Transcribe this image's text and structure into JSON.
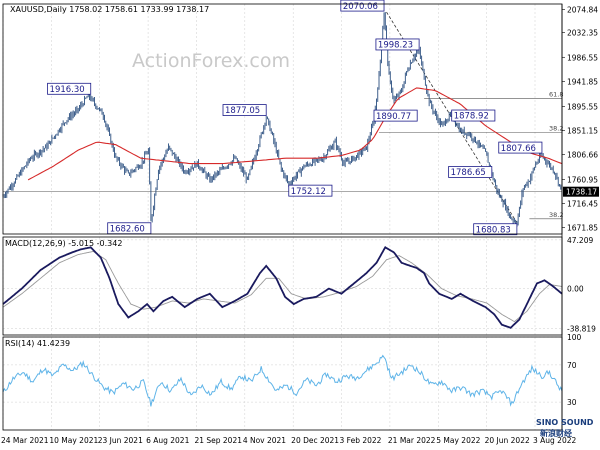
{
  "colors": {
    "bar": "#2a4e7f",
    "ma": "#d62a2a",
    "macd": "#1a1a5e",
    "signal": "#9a9a9a",
    "rsi": "#5fb4e8",
    "grid": "#cfcfcf",
    "ann_border": "#1c1c8a",
    "current_bg": "#000000"
  },
  "watermark": "ActionForex.com",
  "logo": {
    "line1": "SINO SOUND",
    "line2": "新浪财经"
  },
  "chart_data": [
    {
      "type": "ohlc",
      "title": "XAUUSD,Daily  1758.02 1758.61 1733.99 1738.17",
      "price_ticks": [
        2074.84,
        2032.35,
        1986.55,
        1941.85,
        1895.55,
        1851.15,
        1806.66,
        1760.95,
        1716.45,
        1671.85
      ],
      "y_range": [
        1660,
        2085
      ],
      "x_labels": [
        "24 Mar 2021",
        "10 May 2021",
        "23 Jun 2021",
        "6 Aug 2021",
        "21 Sep 2021",
        "4 Nov 2021",
        "20 Dec 2021",
        "3 Feb 2022",
        "21 Mar 2022",
        "5 May 2022",
        "20 Jun 2022",
        "3 Aug 2022"
      ],
      "key_points": [
        [
          0,
          1730
        ],
        [
          10,
          1760
        ],
        [
          22,
          1800
        ],
        [
          35,
          1822
        ],
        [
          50,
          1870
        ],
        [
          60,
          1890
        ],
        [
          68,
          1916
        ],
        [
          80,
          1880
        ],
        [
          90,
          1800
        ],
        [
          100,
          1770
        ],
        [
          110,
          1790
        ],
        [
          116,
          1815
        ],
        [
          118,
          1682
        ],
        [
          124,
          1780
        ],
        [
          132,
          1820
        ],
        [
          145,
          1775
        ],
        [
          155,
          1790
        ],
        [
          165,
          1760
        ],
        [
          175,
          1780
        ],
        [
          185,
          1800
        ],
        [
          195,
          1760
        ],
        [
          205,
          1835
        ],
        [
          210,
          1877
        ],
        [
          215,
          1840
        ],
        [
          222,
          1780
        ],
        [
          228,
          1752
        ],
        [
          240,
          1785
        ],
        [
          255,
          1800
        ],
        [
          265,
          1830
        ],
        [
          272,
          1790
        ],
        [
          280,
          1800
        ],
        [
          290,
          1820
        ],
        [
          296,
          1870
        ],
        [
          300,
          1952
        ],
        [
          304,
          2070
        ],
        [
          308,
          1950
        ],
        [
          312,
          1905
        ],
        [
          318,
          1925
        ],
        [
          322,
          1960
        ],
        [
          328,
          1990
        ],
        [
          332,
          1998
        ],
        [
          336,
          1950
        ],
        [
          340,
          1905
        ],
        [
          345,
          1880
        ],
        [
          350,
          1860
        ],
        [
          355,
          1875
        ],
        [
          358,
          1880
        ],
        [
          365,
          1850
        ],
        [
          372,
          1845
        ],
        [
          378,
          1830
        ],
        [
          385,
          1810
        ],
        [
          390,
          1770
        ],
        [
          395,
          1735
        ],
        [
          400,
          1715
        ],
        [
          405,
          1690
        ],
        [
          410,
          1681
        ],
        [
          415,
          1745
        ],
        [
          420,
          1760
        ],
        [
          425,
          1790
        ],
        [
          430,
          1805
        ],
        [
          435,
          1790
        ],
        [
          440,
          1775
        ],
        [
          446,
          1738
        ]
      ],
      "ma_points": [
        [
          20,
          1760
        ],
        [
          40,
          1785
        ],
        [
          60,
          1815
        ],
        [
          75,
          1830
        ],
        [
          90,
          1825
        ],
        [
          110,
          1800
        ],
        [
          130,
          1795
        ],
        [
          150,
          1790
        ],
        [
          175,
          1790
        ],
        [
          200,
          1795
        ],
        [
          225,
          1800
        ],
        [
          250,
          1800
        ],
        [
          270,
          1805
        ],
        [
          285,
          1815
        ],
        [
          295,
          1835
        ],
        [
          305,
          1875
        ],
        [
          315,
          1910
        ],
        [
          330,
          1930
        ],
        [
          345,
          1925
        ],
        [
          365,
          1900
        ],
        [
          385,
          1860
        ],
        [
          405,
          1830
        ],
        [
          420,
          1810
        ],
        [
          435,
          1800
        ],
        [
          446,
          1790
        ]
      ],
      "annotations": [
        {
          "bar": 70,
          "price": 1916.3,
          "text": "1916.30",
          "side": "left",
          "pos": "above"
        },
        {
          "bar": 118,
          "price": 1682.6,
          "text": "1682.60",
          "side": "left",
          "pos": "below"
        },
        {
          "bar": 210,
          "price": 1877.05,
          "text": "1877.05",
          "side": "left",
          "pos": "above"
        },
        {
          "bar": 228,
          "price": 1752.12,
          "text": "1752.12",
          "side": "right",
          "pos": "below"
        },
        {
          "bar": 304,
          "price": 2070.06,
          "text": "2070.06",
          "side": "left",
          "pos": "above"
        },
        {
          "bar": 332,
          "price": 1998.23,
          "text": "1998.23",
          "side": "left",
          "pos": "above"
        },
        {
          "bar": 296,
          "price": 1890.77,
          "text": "1890.77",
          "side": "right",
          "pos": "below"
        },
        {
          "bar": 390,
          "price": 1786.65,
          "text": "1786.65",
          "side": "left",
          "pos": "below"
        },
        {
          "bar": 358,
          "price": 1878.92,
          "text": "1878.92",
          "side": "right",
          "pos": "mid"
        },
        {
          "bar": 410,
          "price": 1680.83,
          "text": "1680.83",
          "side": "left",
          "pos": "below"
        },
        {
          "bar": 430,
          "price": 1807.66,
          "text": "1807.66",
          "side": "left",
          "pos": "above"
        }
      ],
      "fib_levels": [
        {
          "price": 1910,
          "label": "61.8",
          "from_bar": 336
        },
        {
          "price": 1848,
          "label": "38.2",
          "from_bar": 300
        },
        {
          "price": 1688,
          "label": "38.2",
          "from_bar": 420
        }
      ],
      "hlines": [
        {
          "price": 1738.17
        }
      ],
      "trendline": [
        [
          306,
          2070
        ],
        [
          410,
          1681
        ]
      ],
      "current_price": "1738.17"
    },
    {
      "type": "line",
      "title": "MACD(12,26,9) -5.015 -0.342",
      "y_ticks": [
        47.209,
        0.0,
        -38.819
      ],
      "y_range": [
        -45,
        50
      ],
      "macd_points": [
        [
          0,
          -15
        ],
        [
          15,
          0
        ],
        [
          30,
          18
        ],
        [
          45,
          30
        ],
        [
          55,
          35
        ],
        [
          62,
          38
        ],
        [
          70,
          40
        ],
        [
          78,
          30
        ],
        [
          85,
          10
        ],
        [
          92,
          -15
        ],
        [
          100,
          -28
        ],
        [
          108,
          -22
        ],
        [
          115,
          -15
        ],
        [
          120,
          -22
        ],
        [
          128,
          -12
        ],
        [
          135,
          -8
        ],
        [
          145,
          -18
        ],
        [
          155,
          -10
        ],
        [
          165,
          -5
        ],
        [
          175,
          -18
        ],
        [
          185,
          -12
        ],
        [
          195,
          -5
        ],
        [
          205,
          15
        ],
        [
          210,
          22
        ],
        [
          218,
          10
        ],
        [
          225,
          -8
        ],
        [
          232,
          -15
        ],
        [
          240,
          -10
        ],
        [
          250,
          -8
        ],
        [
          260,
          0
        ],
        [
          270,
          -5
        ],
        [
          280,
          5
        ],
        [
          290,
          15
        ],
        [
          298,
          25
        ],
        [
          305,
          40
        ],
        [
          312,
          35
        ],
        [
          318,
          25
        ],
        [
          325,
          22
        ],
        [
          330,
          20
        ],
        [
          336,
          15
        ],
        [
          340,
          5
        ],
        [
          348,
          -5
        ],
        [
          358,
          -10
        ],
        [
          365,
          -5
        ],
        [
          375,
          -12
        ],
        [
          385,
          -18
        ],
        [
          392,
          -25
        ],
        [
          398,
          -35
        ],
        [
          405,
          -38
        ],
        [
          412,
          -30
        ],
        [
          420,
          -10
        ],
        [
          426,
          5
        ],
        [
          432,
          8
        ],
        [
          438,
          3
        ],
        [
          446,
          -5
        ]
      ],
      "signal_points": [
        [
          0,
          -18
        ],
        [
          15,
          -5
        ],
        [
          30,
          10
        ],
        [
          45,
          25
        ],
        [
          60,
          33
        ],
        [
          72,
          36
        ],
        [
          82,
          28
        ],
        [
          92,
          5
        ],
        [
          102,
          -15
        ],
        [
          112,
          -20
        ],
        [
          122,
          -18
        ],
        [
          135,
          -12
        ],
        [
          148,
          -14
        ],
        [
          160,
          -10
        ],
        [
          172,
          -12
        ],
        [
          185,
          -14
        ],
        [
          198,
          -6
        ],
        [
          210,
          10
        ],
        [
          220,
          10
        ],
        [
          230,
          -5
        ],
        [
          242,
          -10
        ],
        [
          256,
          -8
        ],
        [
          268,
          -4
        ],
        [
          282,
          2
        ],
        [
          295,
          12
        ],
        [
          306,
          28
        ],
        [
          316,
          32
        ],
        [
          326,
          25
        ],
        [
          338,
          14
        ],
        [
          350,
          0
        ],
        [
          362,
          -7
        ],
        [
          374,
          -10
        ],
        [
          386,
          -14
        ],
        [
          398,
          -25
        ],
        [
          408,
          -32
        ],
        [
          418,
          -22
        ],
        [
          428,
          -5
        ],
        [
          436,
          4
        ],
        [
          446,
          2
        ]
      ]
    },
    {
      "type": "line",
      "title": "RSI(14) 41.4239",
      "y_ticks": [
        100,
        70,
        30
      ],
      "y_range": [
        0,
        100
      ],
      "rsi_points": [
        [
          0,
          40
        ],
        [
          8,
          55
        ],
        [
          16,
          62
        ],
        [
          24,
          52
        ],
        [
          32,
          66
        ],
        [
          40,
          58
        ],
        [
          48,
          70
        ],
        [
          56,
          64
        ],
        [
          64,
          72
        ],
        [
          72,
          58
        ],
        [
          80,
          46
        ],
        [
          88,
          40
        ],
        [
          96,
          50
        ],
        [
          104,
          44
        ],
        [
          112,
          52
        ],
        [
          118,
          28
        ],
        [
          126,
          52
        ],
        [
          134,
          42
        ],
        [
          142,
          55
        ],
        [
          150,
          36
        ],
        [
          158,
          48
        ],
        [
          166,
          38
        ],
        [
          174,
          52
        ],
        [
          182,
          44
        ],
        [
          190,
          58
        ],
        [
          198,
          52
        ],
        [
          206,
          66
        ],
        [
          212,
          54
        ],
        [
          218,
          42
        ],
        [
          226,
          48
        ],
        [
          234,
          40
        ],
        [
          242,
          54
        ],
        [
          250,
          48
        ],
        [
          258,
          60
        ],
        [
          266,
          52
        ],
        [
          274,
          58
        ],
        [
          282,
          56
        ],
        [
          290,
          64
        ],
        [
          298,
          72
        ],
        [
          304,
          80
        ],
        [
          310,
          55
        ],
        [
          318,
          62
        ],
        [
          326,
          70
        ],
        [
          334,
          60
        ],
        [
          342,
          48
        ],
        [
          350,
          52
        ],
        [
          358,
          42
        ],
        [
          366,
          46
        ],
        [
          374,
          38
        ],
        [
          382,
          42
        ],
        [
          390,
          36
        ],
        [
          398,
          42
        ],
        [
          406,
          28
        ],
        [
          414,
          50
        ],
        [
          422,
          66
        ],
        [
          430,
          58
        ],
        [
          436,
          62
        ],
        [
          446,
          41
        ]
      ]
    }
  ]
}
